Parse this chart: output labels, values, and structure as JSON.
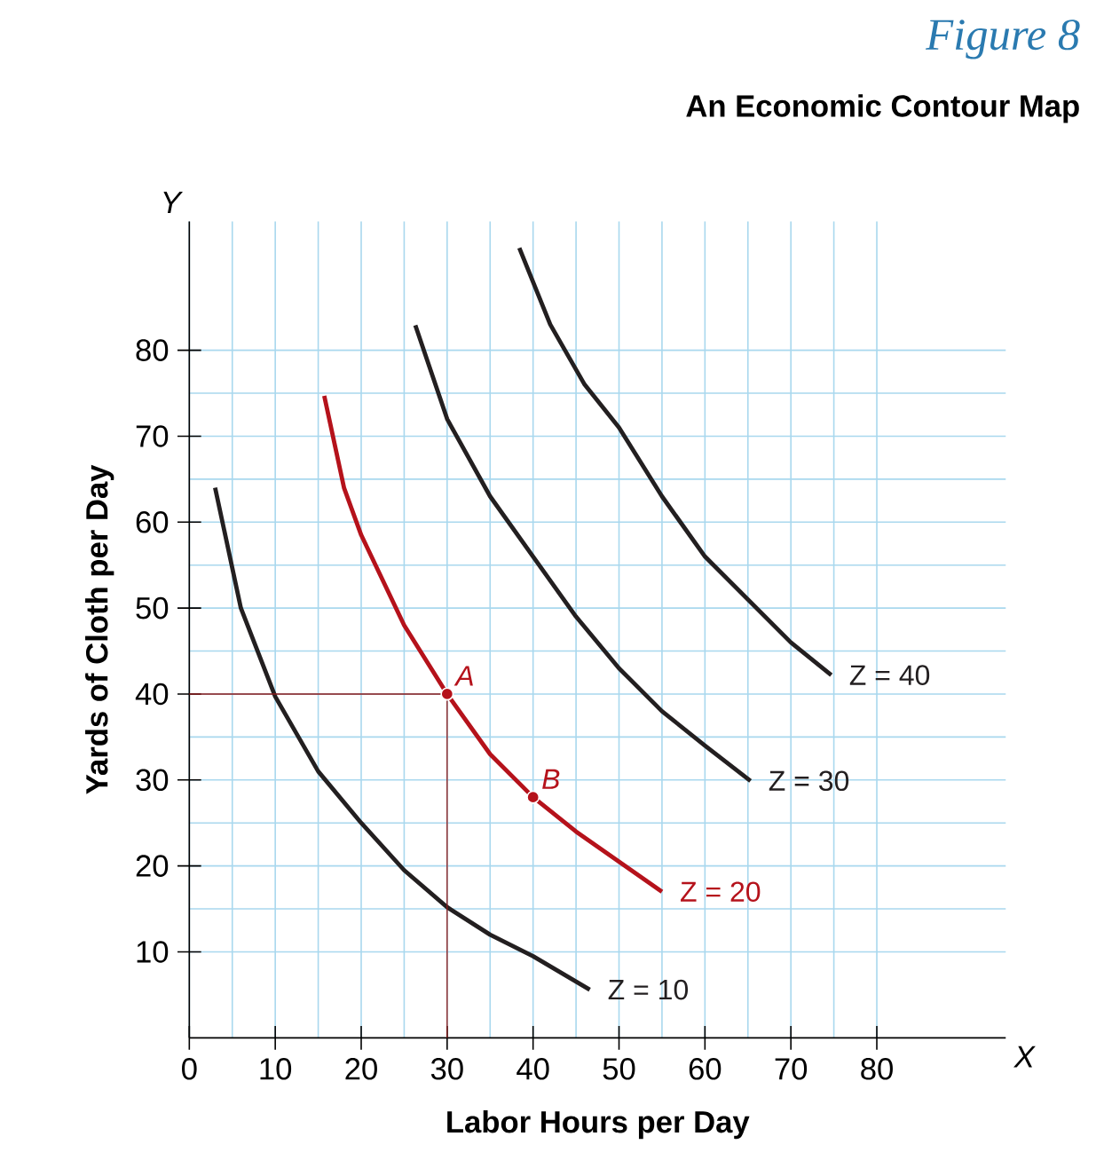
{
  "chart_data": {
    "type": "line",
    "title": "An Economic Contour Map",
    "subtitle": "Figure 8",
    "xlabel": "Labor Hours per Day",
    "ylabel": "Yards of Cloth per Day",
    "xlim": [
      0,
      95
    ],
    "ylim": [
      0,
      95
    ],
    "xticks": [
      0,
      10,
      20,
      30,
      40,
      50,
      60,
      70,
      80
    ],
    "yticks": [
      10,
      20,
      30,
      40,
      50,
      60,
      70,
      80
    ],
    "grid": true,
    "line_style": "solid",
    "series": [
      {
        "name": "Z = 10",
        "color": "#231f20",
        "x": [
          3,
          6,
          10,
          15,
          20,
          25,
          30,
          35,
          40,
          46.6
        ],
        "values": [
          64,
          50,
          39.7,
          31,
          25,
          19.5,
          15.2,
          12,
          9.5,
          5.6
        ]
      },
      {
        "name": "Z = 20",
        "color": "#b5121b",
        "x": [
          15.7,
          18,
          20,
          25,
          30,
          35,
          40,
          45,
          50,
          55
        ],
        "values": [
          74.7,
          64,
          58.5,
          48,
          40,
          33,
          28,
          24,
          20.5,
          17
        ]
      },
      {
        "name": "Z = 30",
        "color": "#231f20",
        "x": [
          26.3,
          30,
          35,
          40,
          45,
          50,
          55,
          60,
          65.3
        ],
        "values": [
          82.9,
          72,
          63,
          56,
          49,
          43,
          38,
          34,
          29.9
        ]
      },
      {
        "name": "Z = 40",
        "color": "#231f20",
        "x": [
          38.4,
          42,
          46,
          50,
          55,
          60,
          65,
          70,
          74.7
        ],
        "values": [
          91.9,
          83,
          76,
          71,
          63,
          56,
          51,
          46,
          42.2
        ]
      },
      {
        "color": "#8b1a1a",
        "x": [
          0,
          30,
          30
        ],
        "values": [
          40,
          40,
          0
        ]
      },
      {
        "type": "scatter",
        "marker": "circle",
        "color": "#b5121b",
        "x": [
          30,
          40
        ],
        "values": [
          40,
          28
        ]
      }
    ],
    "annotations": [
      {
        "text": "A",
        "x": 30,
        "y": 40
      },
      {
        "text": "B",
        "x": 40,
        "y": 28
      },
      "X",
      "Y"
    ]
  }
}
